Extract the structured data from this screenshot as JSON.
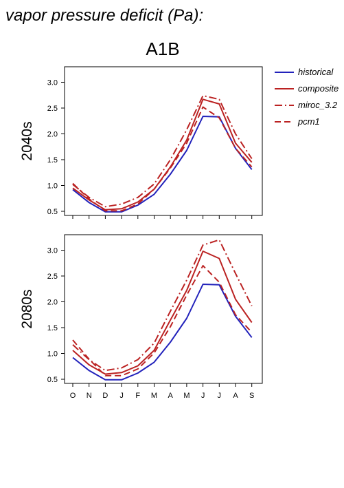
{
  "figure": {
    "title": "vapor pressure deficit (Pa):",
    "scenario": "A1B"
  },
  "chart_data": [
    {
      "type": "line",
      "panel_label": "2040s",
      "categories": [
        "O",
        "N",
        "D",
        "J",
        "F",
        "M",
        "A",
        "M",
        "J",
        "J",
        "A",
        "S"
      ],
      "ylim": [
        0.42,
        3.3
      ],
      "yticks": [
        0.5,
        1.0,
        1.5,
        2.0,
        2.5,
        3.0
      ],
      "ytick_labels": [
        "0.5",
        "1.0",
        "1.5",
        "2.0",
        "2.5",
        "3.0"
      ],
      "grid": false,
      "legend": "right",
      "series": [
        {
          "name": "historical",
          "color": "#2222bb",
          "dash": "solid",
          "values": [
            0.92,
            0.67,
            0.49,
            0.49,
            0.62,
            0.83,
            1.22,
            1.68,
            2.34,
            2.33,
            1.72,
            1.31
          ]
        },
        {
          "name": "composite",
          "color": "#bb2222",
          "dash": "solid",
          "values": [
            0.95,
            0.72,
            0.53,
            0.55,
            0.68,
            0.93,
            1.36,
            1.88,
            2.67,
            2.58,
            1.82,
            1.45
          ]
        },
        {
          "name": "miroc_3.2",
          "color": "#bb2222",
          "dash": "dashdot",
          "values": [
            1.02,
            0.77,
            0.59,
            0.64,
            0.77,
            1.03,
            1.5,
            2.08,
            2.74,
            2.67,
            2.0,
            1.52
          ]
        },
        {
          "name": "pcm1",
          "color": "#bb2222",
          "dash": "dashed",
          "values": [
            1.04,
            0.74,
            0.51,
            0.51,
            0.64,
            0.93,
            1.34,
            1.82,
            2.52,
            2.31,
            1.72,
            1.36
          ]
        }
      ]
    },
    {
      "type": "line",
      "panel_label": "2080s",
      "categories": [
        "O",
        "N",
        "D",
        "J",
        "F",
        "M",
        "A",
        "M",
        "J",
        "J",
        "A",
        "S"
      ],
      "ylim": [
        0.42,
        3.3
      ],
      "yticks": [
        0.5,
        1.0,
        1.5,
        2.0,
        2.5,
        3.0
      ],
      "ytick_labels": [
        "0.5",
        "1.0",
        "1.5",
        "2.0",
        "2.5",
        "3.0"
      ],
      "xtick_labels": [
        "O",
        "N",
        "D",
        "J",
        "F",
        "M",
        "A",
        "M",
        "J",
        "J",
        "A",
        "S"
      ],
      "grid": false,
      "series": [
        {
          "name": "historical",
          "color": "#2222bb",
          "dash": "solid",
          "values": [
            0.92,
            0.67,
            0.49,
            0.49,
            0.62,
            0.83,
            1.22,
            1.68,
            2.34,
            2.33,
            1.72,
            1.31
          ]
        },
        {
          "name": "composite",
          "color": "#bb2222",
          "dash": "solid",
          "values": [
            1.06,
            0.78,
            0.6,
            0.63,
            0.76,
            1.06,
            1.65,
            2.22,
            2.98,
            2.84,
            2.05,
            1.6
          ]
        },
        {
          "name": "miroc_3.2",
          "color": "#bb2222",
          "dash": "dashdot",
          "values": [
            1.17,
            0.88,
            0.67,
            0.72,
            0.88,
            1.2,
            1.82,
            2.42,
            3.1,
            3.2,
            2.55,
            1.92
          ]
        },
        {
          "name": "pcm1",
          "color": "#bb2222",
          "dash": "dashed",
          "values": [
            1.26,
            0.89,
            0.57,
            0.57,
            0.7,
            1.01,
            1.52,
            2.13,
            2.7,
            2.38,
            1.75,
            1.41
          ]
        }
      ]
    }
  ]
}
